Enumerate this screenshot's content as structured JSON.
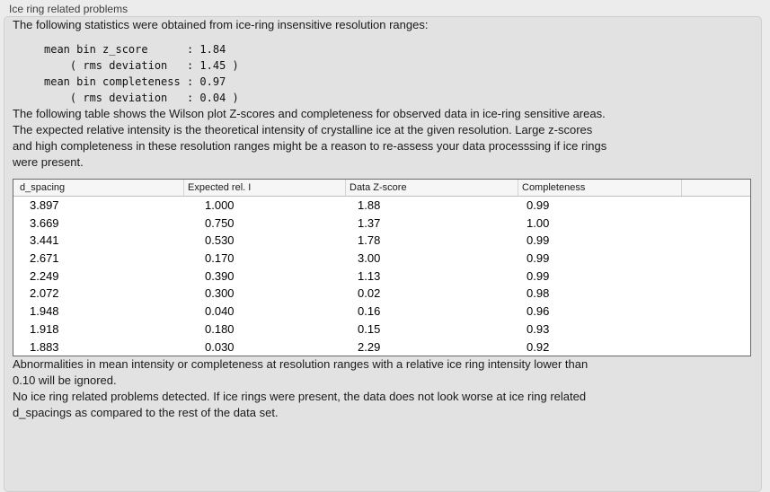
{
  "panel": {
    "title": "Ice ring related problems"
  },
  "intro": "The following statistics were obtained from ice-ring insensitive resolution ranges:",
  "stats_block": [
    "mean bin z_score      : 1.84",
    "    ( rms deviation   : 1.45 )",
    "mean bin completeness : 0.97",
    "    ( rms deviation   : 0.04 )"
  ],
  "stats": {
    "mean_bin_z_score": "1.84",
    "z_score_rms_deviation": "1.45",
    "mean_bin_completeness": "0.97",
    "completeness_rms_deviation": "0.04"
  },
  "table_description": [
    "The following table shows the Wilson plot Z-scores and completeness for observed data in ice-ring sensitive areas.",
    "The expected relative intensity is the theoretical intensity of crystalline ice at the given resolution. Large z-scores",
    "and high completeness in these resolution ranges might be a reason to re-assess your data processsing if ice rings",
    "were present."
  ],
  "table": {
    "columns": [
      "d_spacing",
      "Expected rel. I",
      "Data Z-score",
      "Completeness",
      ""
    ],
    "rows": [
      [
        "3.897",
        "1.000",
        "1.88",
        "0.99"
      ],
      [
        "3.669",
        "0.750",
        "1.37",
        "1.00"
      ],
      [
        "3.441",
        "0.530",
        "1.78",
        "0.99"
      ],
      [
        "2.671",
        "0.170",
        "3.00",
        "0.99"
      ],
      [
        "2.249",
        "0.390",
        "1.13",
        "0.99"
      ],
      [
        "2.072",
        "0.300",
        "0.02",
        "0.98"
      ],
      [
        "1.948",
        "0.040",
        "0.16",
        "0.96"
      ],
      [
        "1.918",
        "0.180",
        "0.15",
        "0.93"
      ],
      [
        "1.883",
        "0.030",
        "2.29",
        "0.92"
      ]
    ]
  },
  "notes": {
    "ignore_note": [
      "Abnormalities in mean intensity or completeness at resolution ranges with a relative ice ring intensity lower than",
      "0.10 will be ignored."
    ],
    "conclusion": [
      "No ice ring related problems detected. If ice rings were present, the data does not look worse at ice ring related",
      "d_spacings as compared to the rest of the data set."
    ]
  }
}
